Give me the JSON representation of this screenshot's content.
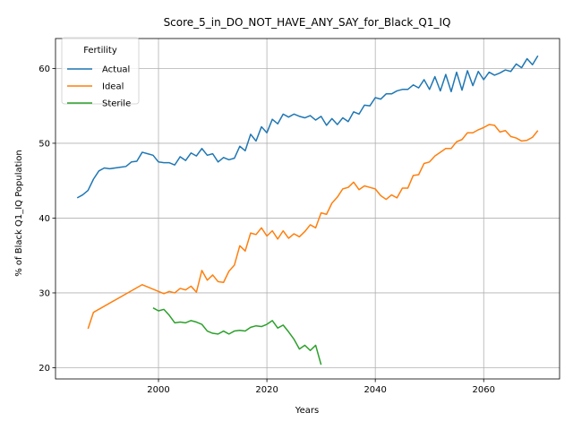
{
  "chart_data": {
    "type": "line",
    "title": "Score_5_in_DO_NOT_HAVE_ANY_SAY_for_Black_Q1_IQ",
    "xlabel": "Years",
    "ylabel": "% of Black Q1_IQ Population",
    "xlim": [
      1981,
      2074
    ],
    "ylim": [
      18.5,
      64
    ],
    "xticks": [
      2000,
      2020,
      2040,
      2060
    ],
    "yticks": [
      20,
      30,
      40,
      50,
      60
    ],
    "grid": true,
    "legend": {
      "title": "Fertility",
      "placement": "top-left"
    },
    "series": [
      {
        "name": "Actual",
        "color": "#1f77b4",
        "points": [
          [
            1985,
            42.7
          ],
          [
            1986,
            43.1
          ],
          [
            1987,
            43.7
          ],
          [
            1988,
            45.2
          ],
          [
            1989,
            46.3
          ],
          [
            1990,
            46.7
          ],
          [
            1991,
            46.6
          ],
          [
            1992,
            46.7
          ],
          [
            1993,
            46.8
          ],
          [
            1994,
            46.9
          ],
          [
            1995,
            47.5
          ],
          [
            1996,
            47.6
          ],
          [
            1997,
            48.8
          ],
          [
            1998,
            48.6
          ],
          [
            1999,
            48.4
          ],
          [
            2000,
            47.5
          ],
          [
            2001,
            47.4
          ],
          [
            2002,
            47.4
          ],
          [
            2003,
            47.1
          ],
          [
            2004,
            48.2
          ],
          [
            2005,
            47.7
          ],
          [
            2006,
            48.7
          ],
          [
            2007,
            48.3
          ],
          [
            2008,
            49.3
          ],
          [
            2009,
            48.4
          ],
          [
            2010,
            48.6
          ],
          [
            2011,
            47.5
          ],
          [
            2012,
            48.1
          ],
          [
            2013,
            47.8
          ],
          [
            2014,
            48.0
          ],
          [
            2015,
            49.6
          ],
          [
            2016,
            49.0
          ],
          [
            2017,
            51.2
          ],
          [
            2018,
            50.3
          ],
          [
            2019,
            52.2
          ],
          [
            2020,
            51.4
          ],
          [
            2021,
            53.2
          ],
          [
            2022,
            52.6
          ],
          [
            2023,
            53.9
          ],
          [
            2024,
            53.5
          ],
          [
            2025,
            53.9
          ],
          [
            2026,
            53.6
          ],
          [
            2027,
            53.4
          ],
          [
            2028,
            53.7
          ],
          [
            2029,
            53.1
          ],
          [
            2030,
            53.6
          ],
          [
            2031,
            52.4
          ],
          [
            2032,
            53.3
          ],
          [
            2033,
            52.5
          ],
          [
            2034,
            53.4
          ],
          [
            2035,
            52.9
          ],
          [
            2036,
            54.2
          ],
          [
            2037,
            53.9
          ],
          [
            2038,
            55.1
          ],
          [
            2039,
            55.0
          ],
          [
            2040,
            56.1
          ],
          [
            2041,
            55.9
          ],
          [
            2042,
            56.6
          ],
          [
            2043,
            56.6
          ],
          [
            2044,
            57.0
          ],
          [
            2045,
            57.2
          ],
          [
            2046,
            57.2
          ],
          [
            2047,
            57.8
          ],
          [
            2048,
            57.4
          ],
          [
            2049,
            58.5
          ],
          [
            2050,
            57.2
          ],
          [
            2051,
            58.9
          ],
          [
            2052,
            57.0
          ],
          [
            2053,
            59.2
          ],
          [
            2054,
            56.9
          ],
          [
            2055,
            59.5
          ],
          [
            2056,
            57.1
          ],
          [
            2057,
            59.7
          ],
          [
            2058,
            57.7
          ],
          [
            2059,
            59.6
          ],
          [
            2060,
            58.5
          ],
          [
            2061,
            59.5
          ],
          [
            2062,
            59.1
          ],
          [
            2063,
            59.4
          ],
          [
            2064,
            59.8
          ],
          [
            2065,
            59.6
          ],
          [
            2066,
            60.6
          ],
          [
            2067,
            60.1
          ],
          [
            2068,
            61.3
          ],
          [
            2069,
            60.5
          ],
          [
            2070,
            61.7
          ]
        ]
      },
      {
        "name": "Ideal",
        "color": "#ff7f0e",
        "points": [
          [
            1987,
            25.2
          ],
          [
            1988,
            27.4
          ],
          [
            1997,
            31.1
          ],
          [
            1998,
            30.8
          ],
          [
            1999,
            30.5
          ],
          [
            2000,
            30.2
          ],
          [
            2001,
            29.9
          ],
          [
            2002,
            30.2
          ],
          [
            2003,
            30.0
          ],
          [
            2004,
            30.6
          ],
          [
            2005,
            30.4
          ],
          [
            2006,
            30.9
          ],
          [
            2007,
            30.1
          ],
          [
            2008,
            33.0
          ],
          [
            2009,
            31.7
          ],
          [
            2010,
            32.4
          ],
          [
            2011,
            31.5
          ],
          [
            2012,
            31.4
          ],
          [
            2013,
            32.9
          ],
          [
            2014,
            33.7
          ],
          [
            2015,
            36.3
          ],
          [
            2016,
            35.6
          ],
          [
            2017,
            38.0
          ],
          [
            2018,
            37.8
          ],
          [
            2019,
            38.7
          ],
          [
            2020,
            37.6
          ],
          [
            2021,
            38.3
          ],
          [
            2022,
            37.2
          ],
          [
            2023,
            38.3
          ],
          [
            2024,
            37.3
          ],
          [
            2025,
            37.9
          ],
          [
            2026,
            37.5
          ],
          [
            2027,
            38.2
          ],
          [
            2028,
            39.1
          ],
          [
            2029,
            38.7
          ],
          [
            2030,
            40.7
          ],
          [
            2031,
            40.5
          ],
          [
            2032,
            42.0
          ],
          [
            2033,
            42.8
          ],
          [
            2034,
            43.9
          ],
          [
            2035,
            44.1
          ],
          [
            2036,
            44.8
          ],
          [
            2037,
            43.8
          ],
          [
            2038,
            44.3
          ],
          [
            2039,
            44.1
          ],
          [
            2040,
            43.9
          ],
          [
            2041,
            43.0
          ],
          [
            2042,
            42.5
          ],
          [
            2043,
            43.1
          ],
          [
            2044,
            42.7
          ],
          [
            2045,
            44.0
          ],
          [
            2046,
            44.0
          ],
          [
            2047,
            45.7
          ],
          [
            2048,
            45.8
          ],
          [
            2049,
            47.3
          ],
          [
            2050,
            47.5
          ],
          [
            2051,
            48.3
          ],
          [
            2052,
            48.8
          ],
          [
            2053,
            49.3
          ],
          [
            2054,
            49.3
          ],
          [
            2055,
            50.2
          ],
          [
            2056,
            50.5
          ],
          [
            2057,
            51.4
          ],
          [
            2058,
            51.4
          ],
          [
            2059,
            51.8
          ],
          [
            2060,
            52.1
          ],
          [
            2061,
            52.5
          ],
          [
            2062,
            52.4
          ],
          [
            2063,
            51.5
          ],
          [
            2064,
            51.7
          ],
          [
            2065,
            50.9
          ],
          [
            2066,
            50.7
          ],
          [
            2067,
            50.3
          ],
          [
            2068,
            50.4
          ],
          [
            2069,
            50.8
          ],
          [
            2070,
            51.7
          ]
        ]
      },
      {
        "name": "Sterile",
        "color": "#2ca02c",
        "points": [
          [
            1999,
            28.0
          ],
          [
            2000,
            27.6
          ],
          [
            2001,
            27.8
          ],
          [
            2002,
            27.0
          ],
          [
            2003,
            26.0
          ],
          [
            2004,
            26.1
          ],
          [
            2005,
            26.0
          ],
          [
            2006,
            26.3
          ],
          [
            2007,
            26.1
          ],
          [
            2008,
            25.8
          ],
          [
            2009,
            24.9
          ],
          [
            2010,
            24.6
          ],
          [
            2011,
            24.5
          ],
          [
            2012,
            24.9
          ],
          [
            2013,
            24.5
          ],
          [
            2014,
            24.9
          ],
          [
            2015,
            25.0
          ],
          [
            2016,
            24.9
          ],
          [
            2017,
            25.4
          ],
          [
            2018,
            25.6
          ],
          [
            2019,
            25.5
          ],
          [
            2020,
            25.8
          ],
          [
            2021,
            26.3
          ],
          [
            2022,
            25.3
          ],
          [
            2023,
            25.7
          ],
          [
            2024,
            24.8
          ],
          [
            2025,
            23.8
          ],
          [
            2026,
            22.5
          ],
          [
            2027,
            23.0
          ],
          [
            2028,
            22.3
          ],
          [
            2029,
            23.0
          ],
          [
            2030,
            20.4
          ]
        ]
      }
    ]
  }
}
